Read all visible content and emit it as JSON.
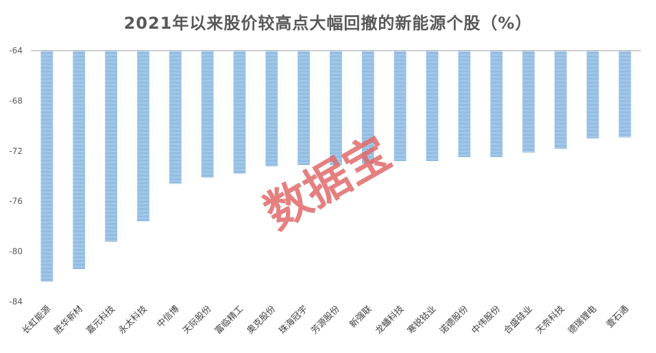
{
  "chart_data": {
    "type": "bar",
    "title": "2021年以来股价较高点大幅回撤的新能源个股（%）",
    "xlabel": "",
    "ylabel": "",
    "categories": [
      "长虹能源",
      "胜华新材",
      "嘉元科技",
      "永太科技",
      "中信博",
      "天际股份",
      "富临精工",
      "奥克股份",
      "珠海冠宇",
      "芳源股份",
      "新强联",
      "龙蟠科技",
      "寒锐钴业",
      "诺德股份",
      "中伟股份",
      "合盛硅业",
      "天奈科技",
      "德瑞锂电",
      "壹石通"
    ],
    "values": [
      -82.4,
      -81.4,
      -79.2,
      -77.6,
      -74.6,
      -74.1,
      -73.8,
      -73.2,
      -73.1,
      -73.1,
      -73.0,
      -72.8,
      -72.8,
      -72.5,
      -72.5,
      -72.1,
      -71.8,
      -71.0,
      -70.9
    ],
    "ylim": [
      -84,
      -64
    ],
    "yticks": [
      -64,
      -68,
      -72,
      -76,
      -80,
      -84
    ],
    "grid": false,
    "legend": "none",
    "bar_color": "#5b9bd5",
    "watermark": "数据宝",
    "watermark_color": "#e06a6a"
  }
}
